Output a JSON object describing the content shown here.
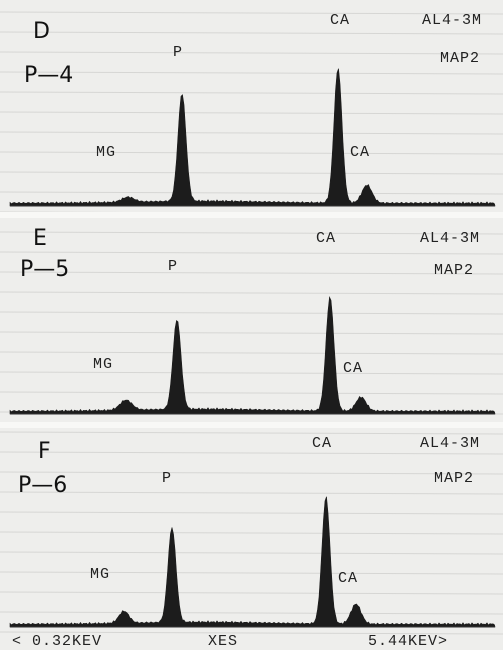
{
  "panels": [
    {
      "label": "D",
      "sample": "P—4",
      "element_top": "CA",
      "specimen": "AL4-3M",
      "map": "MAP2",
      "peak_p": "P",
      "peak_mg": "MG",
      "peak_ca": "CA"
    },
    {
      "label": "E",
      "sample": "P—5",
      "element_top": "CA",
      "specimen": "AL4-3M",
      "map": "MAP2",
      "peak_p": "P",
      "peak_mg": "MG",
      "peak_ca": "CA"
    },
    {
      "label": "F",
      "sample": "P—6",
      "element_top": "CA",
      "specimen": "AL4-3M",
      "map": "MAP2",
      "peak_p": "P",
      "peak_mg": "MG",
      "peak_ca": "CA"
    }
  ],
  "axis": {
    "start": "< 0.32KEV",
    "mode": "XES",
    "end": "5.44KEV>"
  }
}
